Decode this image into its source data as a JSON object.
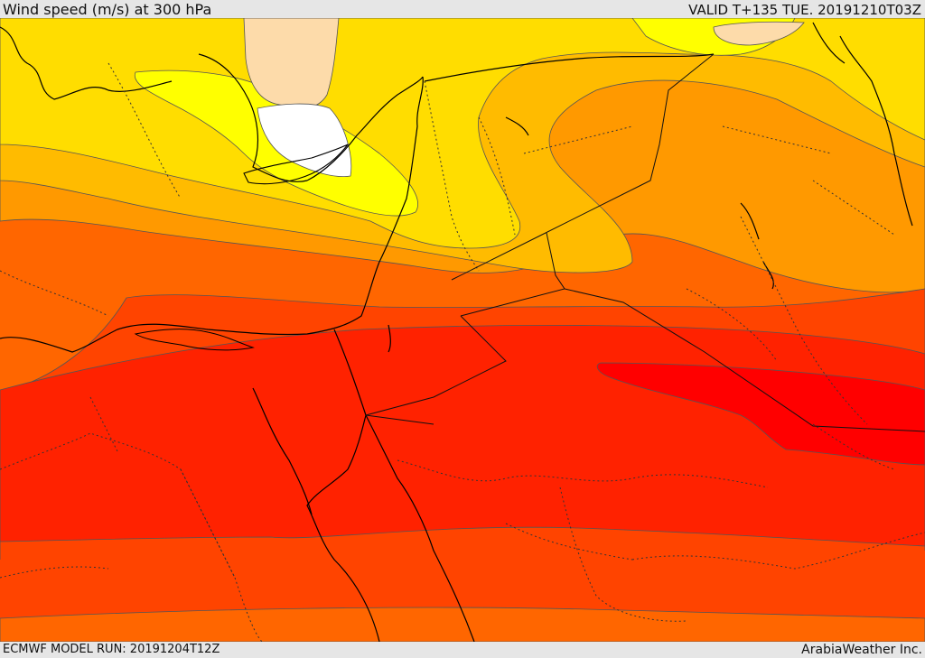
{
  "header": {
    "title": "Wind speed (m/s) at 300 hPa",
    "valid": "VALID T+135 TUE. 20191210T03Z"
  },
  "footer": {
    "model_run": "ECMWF MODEL RUN: 20191204T12Z",
    "credit": "ArabiaWeather Inc."
  },
  "map": {
    "field": "wind speed",
    "level": "300 hPa",
    "colors": {
      "band_0": "#ffffff",
      "band_1": "#fddbaa",
      "band_2": "#ffff00",
      "band_3": "#ffdd00",
      "band_4": "#ffbb00",
      "band_5": "#ff9900",
      "band_6": "#ff6600",
      "band_7": "#ff4400",
      "band_8": "#ff2200",
      "band_9": "#ff0000",
      "coastline": "#000000",
      "border": "#333333",
      "contour": "#555555"
    }
  }
}
